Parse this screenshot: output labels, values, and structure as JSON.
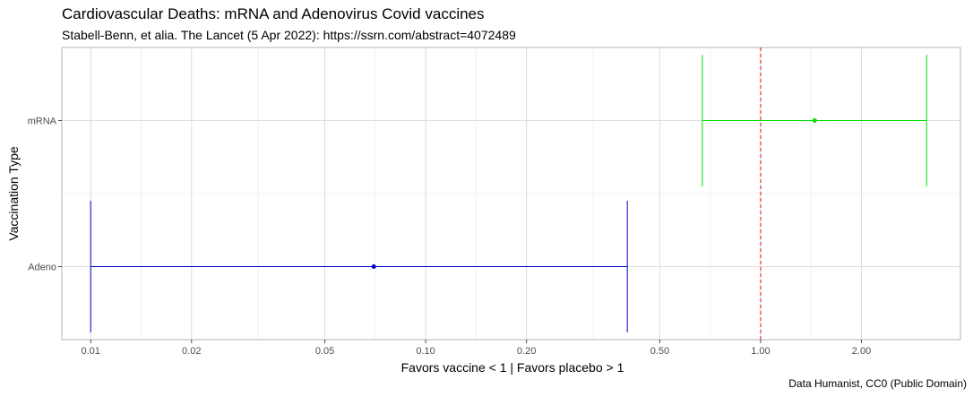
{
  "chart_data": {
    "type": "errorbar",
    "title": "Cardiovascular Deaths: mRNA and Adenovirus Covid vaccines",
    "subtitle": "Stabell-Benn, et alia. The Lancet (5 Apr 2022): https://ssrn.com/abstract=4072489",
    "caption": "Data Humanist, CC0 (Public Domain)",
    "xlabel": "Favors vaccine < 1  | Favors placebo > 1",
    "ylabel": "Vaccination Type",
    "x_scale": "log10",
    "xlim": [
      0.0082,
      3.95
    ],
    "x_ticks": [
      {
        "value": 0.01,
        "label": "0.01"
      },
      {
        "value": 0.02,
        "label": "0.02"
      },
      {
        "value": 0.05,
        "label": "0.05"
      },
      {
        "value": 0.1,
        "label": "0.10"
      },
      {
        "value": 0.2,
        "label": "0.20"
      },
      {
        "value": 0.5,
        "label": "0.50"
      },
      {
        "value": 1,
        "label": "1.00"
      },
      {
        "value": 2,
        "label": "2.00"
      }
    ],
    "categories": [
      "mRNA",
      "Adeno"
    ],
    "series": [
      {
        "category": "mRNA",
        "estimate": 1.45,
        "lower": 0.67,
        "upper": 3.13,
        "color": "#00dd00"
      },
      {
        "category": "Adeno",
        "estimate": 0.07,
        "lower": 0.01,
        "upper": 0.4,
        "color": "#0000cc"
      }
    ],
    "reference_line": {
      "value": 1.0,
      "color": "#ff0000",
      "style": "dashed"
    },
    "grid": true,
    "legend": "none"
  }
}
